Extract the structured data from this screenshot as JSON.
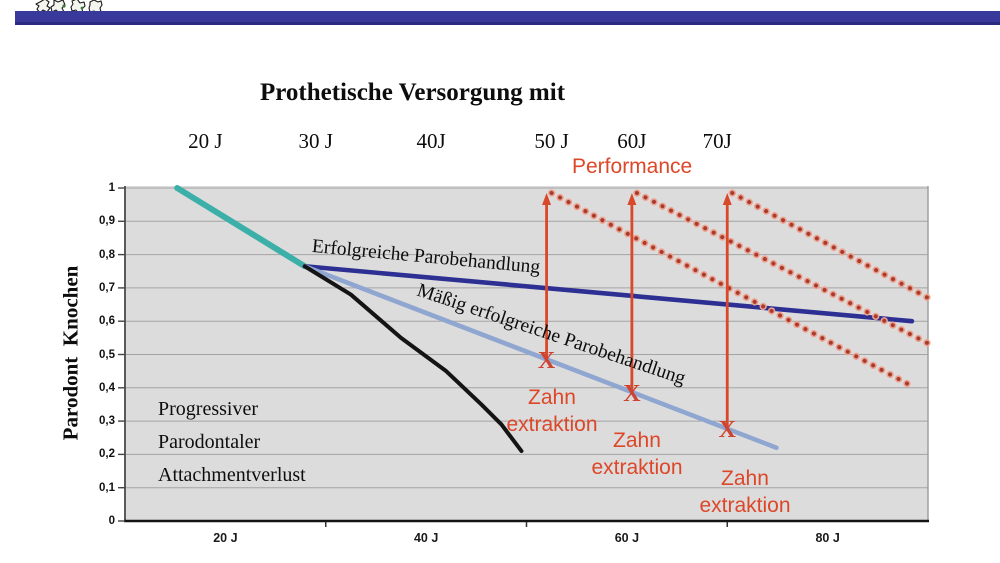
{
  "slide": {
    "logo": "university-crest",
    "top_bar_color": "#39399b",
    "accent_red": "#dd4728"
  },
  "chart_data": {
    "type": "line",
    "title": "Prothetische Versorgung mit",
    "grid": true,
    "top_axis_labels": [
      {
        "label": "20 J",
        "year": 18
      },
      {
        "label": "30 J",
        "year": 29
      },
      {
        "label": "40J",
        "year": 40.5
      },
      {
        "label": "50 J",
        "year": 52.5
      },
      {
        "label": "60J",
        "year": 60.5
      },
      {
        "label": "70J",
        "year": 69
      }
    ],
    "x_axis": {
      "unit": "Jahre",
      "range": [
        10,
        90
      ],
      "ticks": [
        {
          "label": "20 J",
          "year": 20
        },
        {
          "label": "40 J",
          "year": 40
        },
        {
          "label": "60 J",
          "year": 60
        },
        {
          "label": "80 J",
          "year": 80
        }
      ],
      "minor_tick_years": [
        30,
        50,
        70
      ]
    },
    "y_axis": {
      "label": "Parodont  Knochen",
      "range": [
        0,
        1
      ],
      "ticks": [
        {
          "value": 1,
          "label": "1"
        },
        {
          "value": 0.9,
          "label": "0,9"
        },
        {
          "value": 0.8,
          "label": "0,8"
        },
        {
          "value": 0.7,
          "label": "0,7"
        },
        {
          "value": 0.6,
          "label": "0,6"
        },
        {
          "value": 0.5,
          "label": "0,5"
        },
        {
          "value": 0.4,
          "label": "0,4"
        },
        {
          "value": 0.3,
          "label": "0,3"
        },
        {
          "value": 0.2,
          "label": "0,2"
        },
        {
          "value": 0.1,
          "label": "0,1"
        },
        {
          "value": 0,
          "label": "0"
        }
      ]
    },
    "series": [
      {
        "id": "gesunder-knochen",
        "label": "",
        "color": "#3bafa8",
        "width": 6,
        "points": [
          [
            15.2,
            1.0
          ],
          [
            27.9,
            0.765
          ]
        ]
      },
      {
        "id": "erfolgreiche-parobehandlung",
        "label": "Erfolgreiche Parobehandlung",
        "color": "#2d2f93",
        "width": 4.6,
        "points": [
          [
            27.9,
            0.765
          ],
          [
            88.4,
            0.6
          ]
        ]
      },
      {
        "id": "maessig-erfolgreiche-parobehandlung",
        "label": "Mäßig erfolgreiche Parobehandlung",
        "color": "#8fa6d1",
        "width": 4.6,
        "points": [
          [
            27.9,
            0.765
          ],
          [
            74.9,
            0.22
          ]
        ]
      },
      {
        "id": "progressiver-attachmentverlust",
        "label": "Progressiver Parodontaler Attachmentverlust",
        "color": "#141414",
        "width": 4,
        "points": [
          [
            27.9,
            0.765
          ],
          [
            32.5,
            0.68
          ],
          [
            37.5,
            0.55
          ],
          [
            42,
            0.45
          ],
          [
            45.5,
            0.35
          ],
          [
            47.5,
            0.29
          ],
          [
            49.5,
            0.21
          ]
        ]
      }
    ],
    "performance": {
      "label": "Performance",
      "arrow_color": "#d9482a",
      "dot_color": "#a63c2e",
      "dot_halo_color": "#efa18f",
      "arrow_top_level": 0.985,
      "dotted_lines": [
        {
          "from": [
            52,
            0.985
          ],
          "to": [
            88.7,
            0.4
          ]
        },
        {
          "from": [
            60.5,
            0.985
          ],
          "to": [
            89.9,
            0.535
          ]
        },
        {
          "from": [
            70,
            0.985
          ],
          "to": [
            90,
            0.67
          ]
        }
      ]
    },
    "extractions": [
      {
        "year": 52,
        "level": 0.483,
        "marker": "X",
        "label": "Zahn\nextraktion"
      },
      {
        "year": 60.5,
        "level": 0.384,
        "marker": "X",
        "label": "Zahn\nextraktion"
      },
      {
        "year": 70,
        "level": 0.276,
        "marker": "X",
        "label": "Zahn\nextraktion"
      }
    ]
  }
}
